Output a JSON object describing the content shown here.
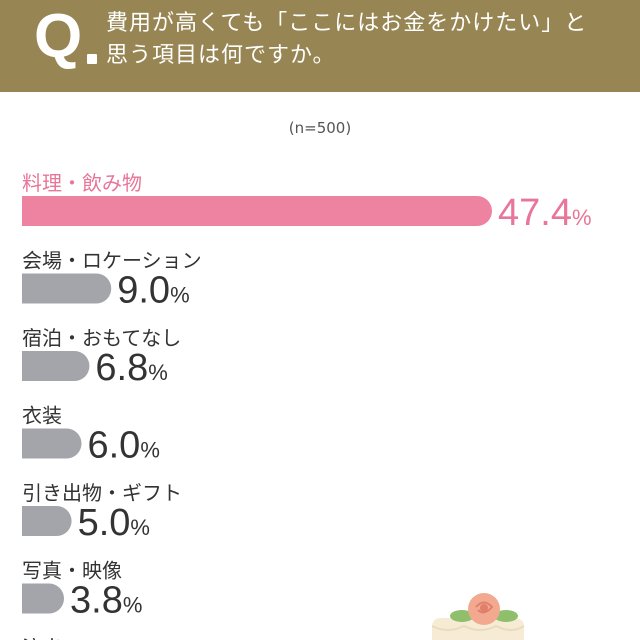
{
  "question": {
    "mark": "Q",
    "line1": "費用が高くても「ここにはお金をかけたい」と",
    "line2": "思う項目は何ですか。"
  },
  "sample_size": "(n=500)",
  "chart_data": {
    "type": "bar",
    "orientation": "horizontal",
    "unit": "%",
    "categories": [
      "料理・飲み物",
      "会場・ロケーション",
      "宿泊・おもてなし",
      "衣装",
      "引き出物・ギフト",
      "写真・映像",
      "演出"
    ],
    "values": [
      47.4,
      9.0,
      6.8,
      6.0,
      5.0,
      3.8,
      null
    ],
    "value_labels": [
      "47.4",
      "9.0",
      "6.8",
      "6.0",
      "5.0",
      "3.8",
      ""
    ],
    "highlight_index": 0,
    "colors": {
      "highlight": "#ee82a1",
      "default": "#a4a5aa",
      "highlight_text": "#e8769a",
      "default_text": "#333333",
      "header_bg": "#978653"
    }
  }
}
